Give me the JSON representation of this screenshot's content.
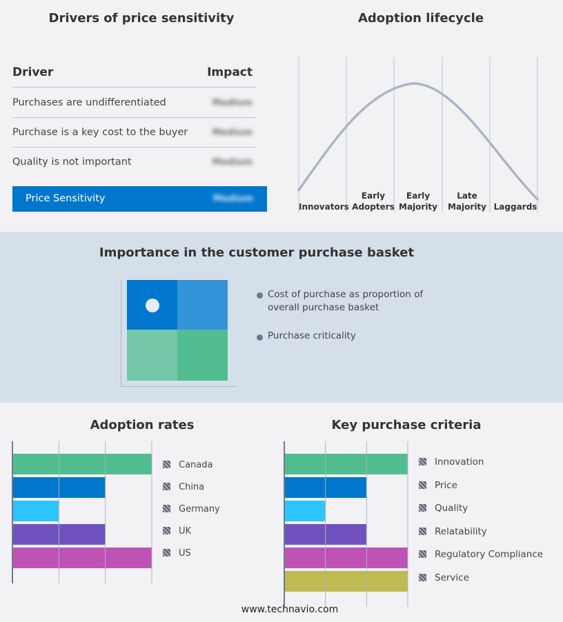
{
  "drivers": {
    "title": "Drivers of price sensitivity",
    "col_driver": "Driver",
    "col_impact": "Impact",
    "rows": [
      {
        "driver": "Purchases are undifferentiated",
        "impact": "Medium"
      },
      {
        "driver": "Purchase is a key cost to the buyer",
        "impact": "Medium"
      },
      {
        "driver": "Quality is not important",
        "impact": "Medium"
      }
    ],
    "summary": {
      "label": "Price Sensitivity",
      "impact": "Medium"
    }
  },
  "lifecycle": {
    "title": "Adoption lifecycle",
    "stages": [
      "Innovators",
      "Early Adopters",
      "Early Majority",
      "Late Majority",
      "Laggards"
    ]
  },
  "basket": {
    "title": "Importance in the customer purchase basket",
    "legend": [
      "Cost of purchase as proportion of overall purchase basket",
      "Purchase criticality"
    ]
  },
  "chart_data": [
    {
      "type": "bar",
      "title": "Adoption rates",
      "orientation": "horizontal",
      "categories": [
        "Canada",
        "China",
        "Germany",
        "UK",
        "US"
      ],
      "values": [
        3,
        2,
        1,
        2,
        3
      ],
      "xlim": [
        0,
        3
      ],
      "colors": [
        "#52bd91",
        "#0077cc",
        "#2ec4ff",
        "#6f52bd",
        "#bf52b5"
      ],
      "grid": true,
      "legend": "right"
    },
    {
      "type": "bar",
      "title": "Key purchase criteria",
      "orientation": "horizontal",
      "categories": [
        "Innovation",
        "Price",
        "Quality",
        "Relatability",
        "Regulatory Compliance",
        "Service"
      ],
      "values": [
        3,
        2,
        1,
        2,
        3,
        3
      ],
      "xlim": [
        0,
        3
      ],
      "colors": [
        "#52bd91",
        "#0077cc",
        "#2ec4ff",
        "#6f52bd",
        "#bf52b5",
        "#bfba52"
      ],
      "grid": true,
      "legend": "right"
    }
  ],
  "footer": "www.technavio.com"
}
